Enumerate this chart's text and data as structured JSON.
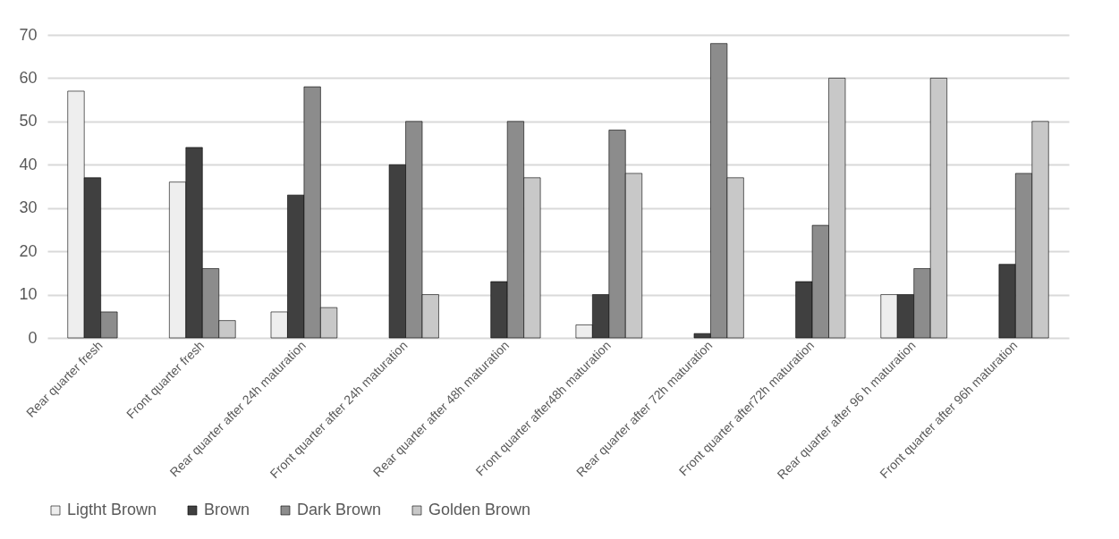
{
  "chart_data": {
    "type": "bar",
    "categories": [
      "Rear quarter fresh",
      "Front quarter fresh",
      "Rear quarter  after 24h maturation",
      "Front quarter  after 24h maturation",
      "Rear quarter  after 48h maturation",
      "Front quarter  after48h  maturation",
      "Rear quarter  after 72h maturation",
      "Front quarter  after72h  maturation",
      "Rear quarter  after 96 h maturation",
      "Front quarter  after 96h maturation"
    ],
    "series": [
      {
        "name": "Ligtht Brown",
        "color": "#eeeeee",
        "values": [
          57,
          36,
          6,
          0,
          0,
          3,
          0,
          0,
          10,
          0
        ]
      },
      {
        "name": "Brown",
        "color": "#404040",
        "values": [
          37,
          44,
          33,
          40,
          13,
          10,
          1,
          13,
          10,
          17
        ]
      },
      {
        "name": "Dark Brown",
        "color": "#8c8c8c",
        "values": [
          6,
          16,
          58,
          50,
          50,
          48,
          68,
          26,
          16,
          38
        ]
      },
      {
        "name": "Golden Brown",
        "color": "#c8c8c8",
        "values": [
          0,
          4,
          7,
          10,
          37,
          38,
          37,
          60,
          60,
          50
        ]
      }
    ],
    "ylim": [
      0,
      70
    ],
    "yticks": [
      0,
      10,
      20,
      30,
      40,
      50,
      60,
      70
    ],
    "grid": "y",
    "legend": "bottom"
  }
}
